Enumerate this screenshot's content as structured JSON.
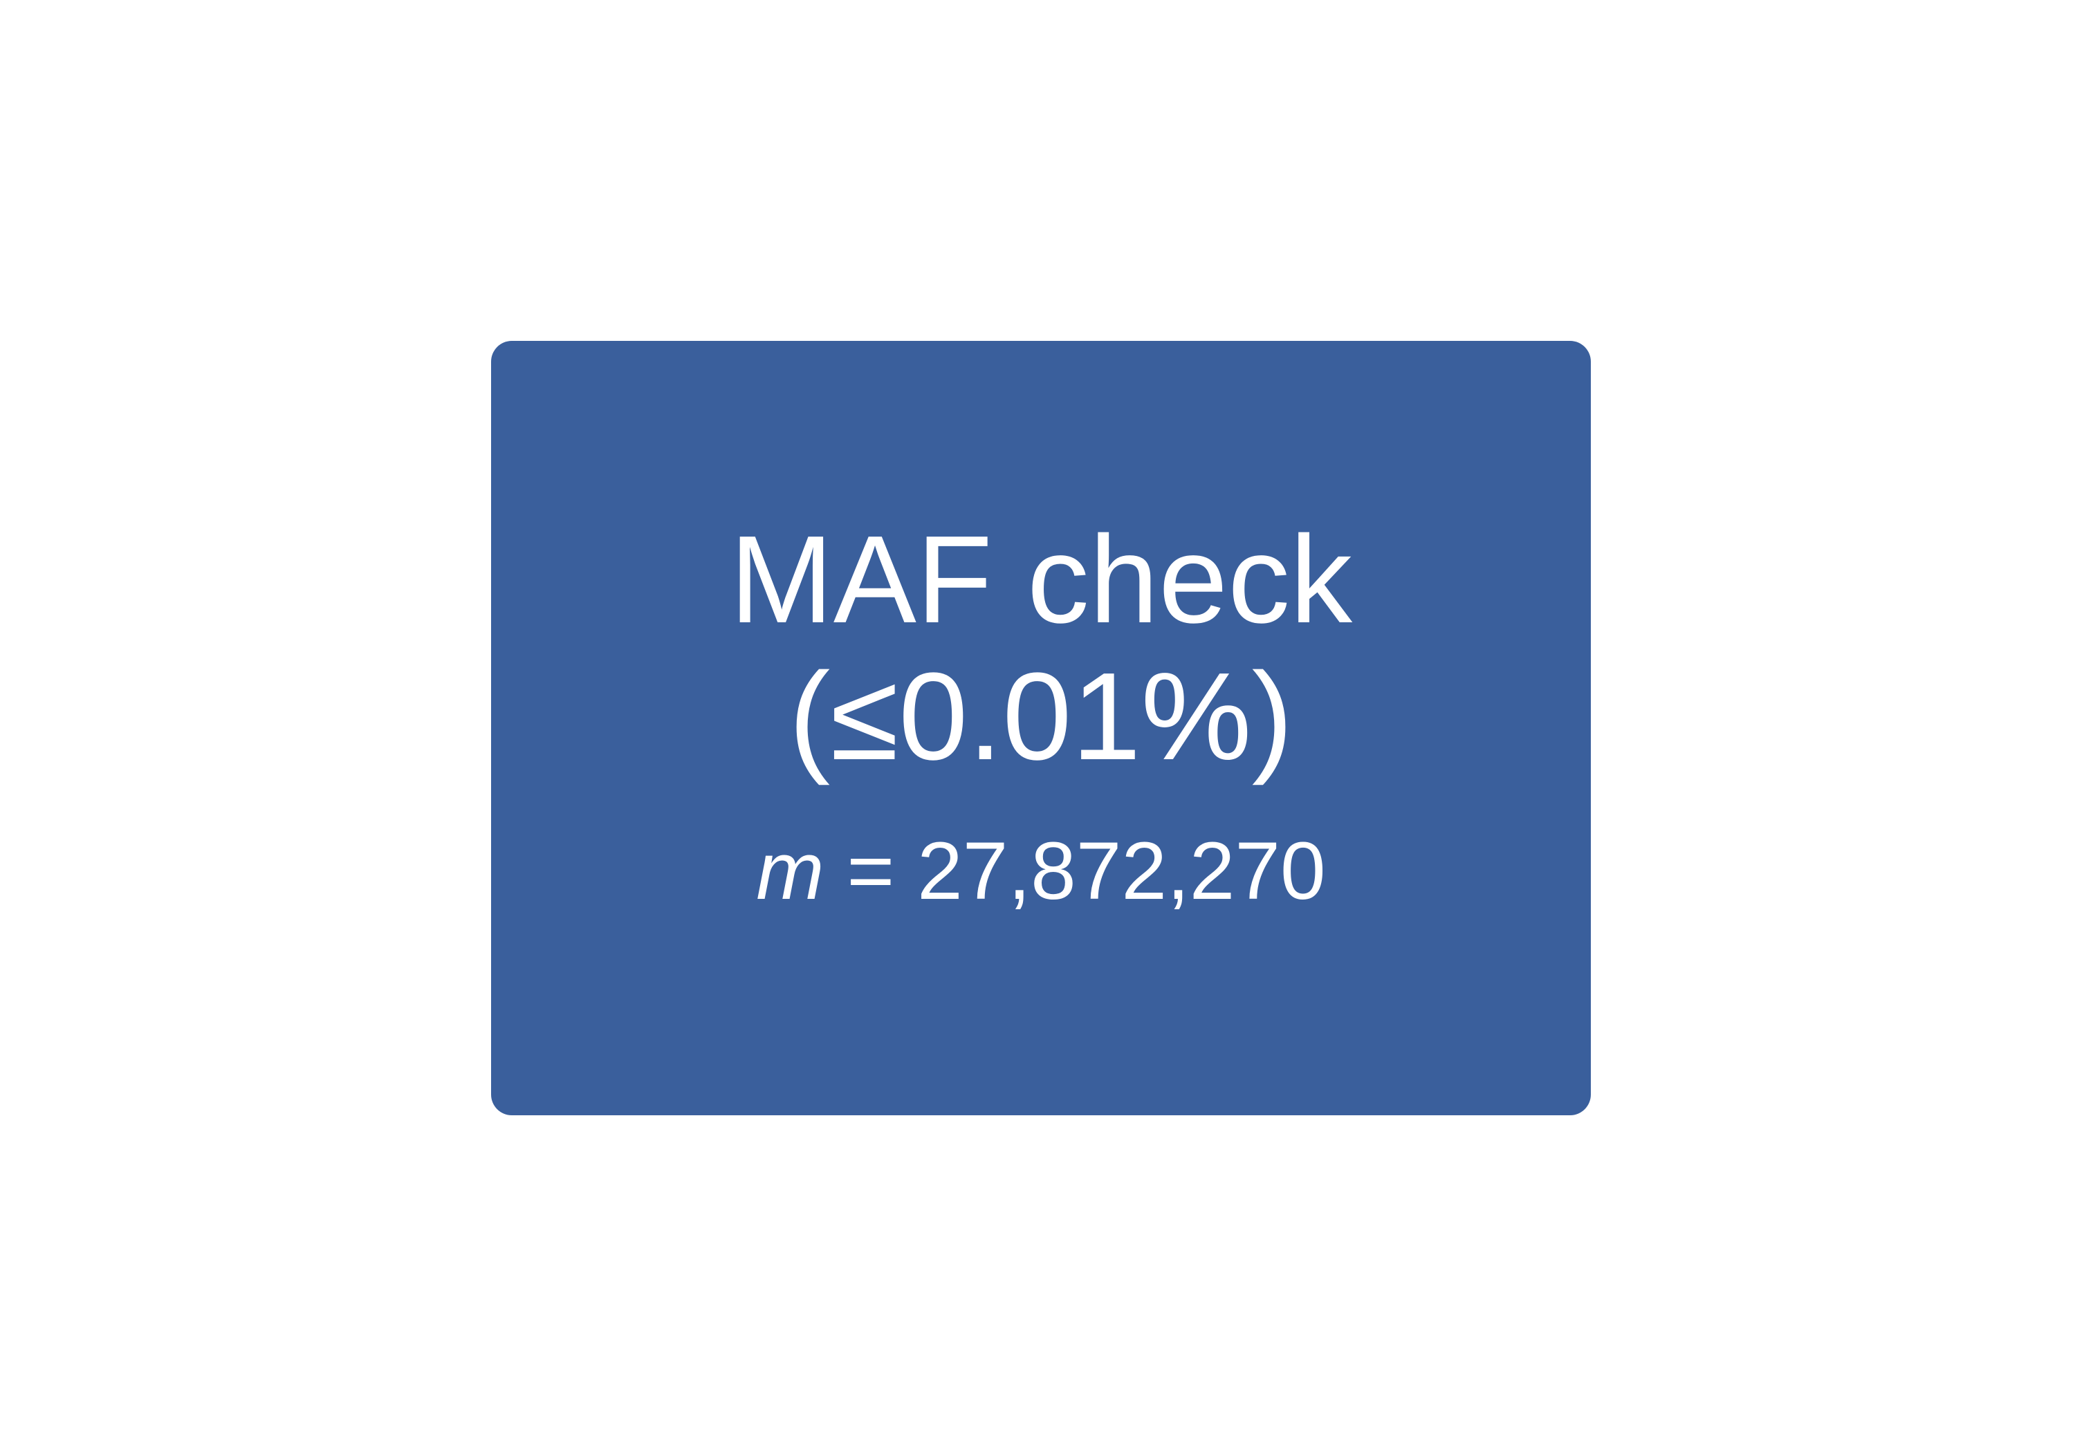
{
  "colors": {
    "box_fill": "#3a5f9c",
    "text": "#ffffff",
    "background": "#ffffff"
  },
  "box": {
    "title_line_1": "MAF check",
    "title_line_2": "(≤0.01%)",
    "count": {
      "variable": "m",
      "operator": "=",
      "value": "27,872,270"
    }
  }
}
